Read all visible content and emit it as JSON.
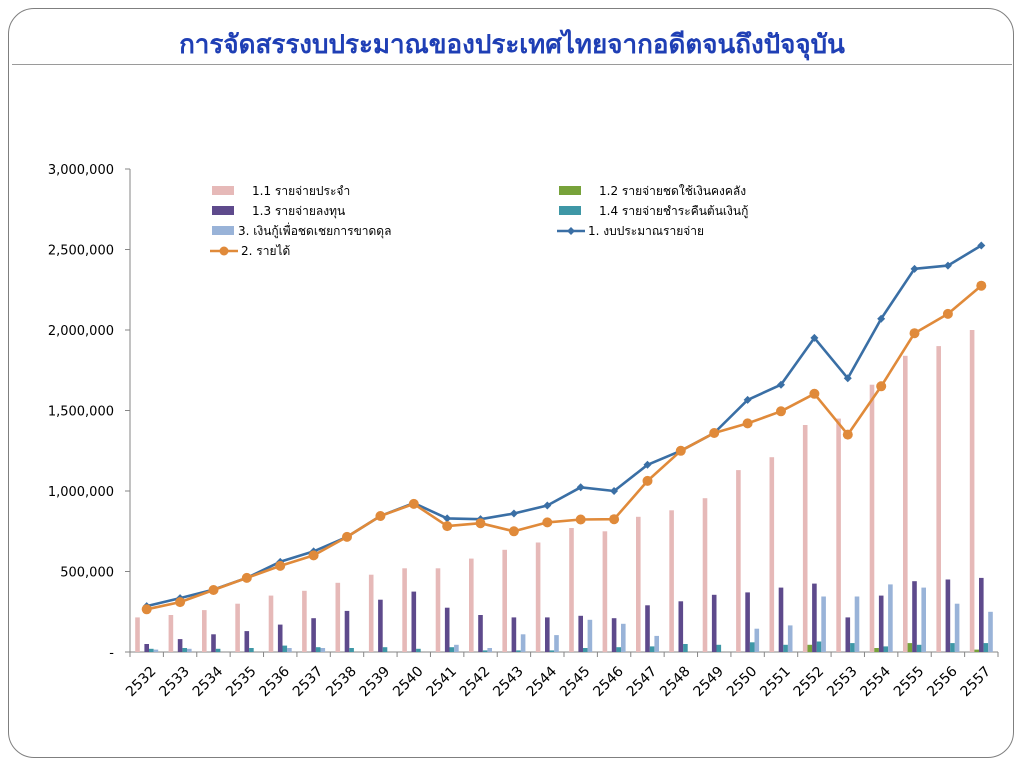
{
  "slide": {
    "title": "การจัดสรรงบประมาณของประเทศไทยจากอดีตจนถึงปัจจุบัน"
  },
  "chart_data": {
    "type": "bar+line",
    "title": "การจัดสรรงบประมาณของประเทศไทยจากอดีตจนถึงปัจจุบัน",
    "xlabel": "",
    "ylabel": "",
    "ylim": [
      0,
      3000000
    ],
    "y_ticks": [
      "-",
      "500,000",
      "1,000,000",
      "1,500,000",
      "2,000,000",
      "2,500,000",
      "3,000,000"
    ],
    "grid": false,
    "legend_position": "top-left",
    "categories": [
      "2532",
      "2533",
      "2534",
      "2535",
      "2536",
      "2537",
      "2538",
      "2539",
      "2540",
      "2541",
      "2542",
      "2543",
      "2544",
      "2545",
      "2546",
      "2547",
      "2548",
      "2549",
      "2550",
      "2551",
      "2552",
      "2553",
      "2554",
      "2555",
      "2556",
      "2557"
    ],
    "bar_series": [
      {
        "name": "1.1 รายจ่ายประจำ",
        "color": "#e6b9b8",
        "values": [
          215000,
          230000,
          260000,
          300000,
          350000,
          380000,
          430000,
          480000,
          520000,
          520000,
          580000,
          635000,
          680000,
          770000,
          750000,
          840000,
          880000,
          955000,
          1130000,
          1210000,
          1410000,
          1450000,
          1660000,
          1840000,
          1900000,
          2000000
        ]
      },
      {
        "name": "1.2 รายจ่ายชดใช้เงินคงคลัง",
        "color": "#77a23a",
        "values": [
          0,
          0,
          0,
          0,
          0,
          0,
          0,
          0,
          0,
          0,
          0,
          0,
          0,
          0,
          0,
          0,
          0,
          0,
          0,
          0,
          45000,
          0,
          25000,
          55000,
          0,
          15000
        ]
      },
      {
        "name": "1.3 รายจ่ายลงทุน",
        "color": "#5e4a8c",
        "values": [
          50000,
          80000,
          110000,
          130000,
          170000,
          210000,
          255000,
          325000,
          375000,
          275000,
          230000,
          215000,
          215000,
          225000,
          210000,
          290000,
          315000,
          355000,
          370000,
          400000,
          425000,
          215000,
          350000,
          440000,
          450000,
          460000
        ]
      },
      {
        "name": "1.4 รายจ่ายชำระคืนต้นเงินกู้",
        "color": "#3e97a6",
        "values": [
          20000,
          25000,
          20000,
          25000,
          40000,
          30000,
          25000,
          30000,
          20000,
          30000,
          10000,
          10000,
          10000,
          25000,
          30000,
          35000,
          50000,
          45000,
          60000,
          45000,
          65000,
          55000,
          35000,
          45000,
          55000,
          55000
        ]
      },
      {
        "name": "3. เงินกู้เพื่อชดเชยการขาดดุล",
        "color": "#99b3d8",
        "values": [
          15000,
          20000,
          0,
          0,
          25000,
          25000,
          0,
          0,
          0,
          45000,
          25000,
          110000,
          105000,
          200000,
          175000,
          100000,
          0,
          0,
          145000,
          165000,
          345000,
          345000,
          420000,
          400000,
          300000,
          250000
        ]
      }
    ],
    "line_series": [
      {
        "name": "1. งบประมาณรายจ่าย",
        "color": "#3a6fa5",
        "marker": "diamond",
        "values": [
          285000,
          335000,
          387500,
          460000,
          560000,
          625000,
          715000,
          845000,
          925000,
          830000,
          825000,
          860000,
          910000,
          1023000,
          1000000,
          1163000,
          1250000,
          1360000,
          1566000,
          1660000,
          1951000,
          1700000,
          2070000,
          2380000,
          2400000,
          2525000
        ]
      },
      {
        "name": "2. รายได้",
        "color": "#e08a3a",
        "marker": "circle",
        "values": [
          265000,
          310000,
          385000,
          460000,
          535000,
          600000,
          715000,
          845000,
          920000,
          782000,
          800000,
          750000,
          805000,
          823000,
          825000,
          1063000,
          1250000,
          1360000,
          1420000,
          1495000,
          1604000,
          1350000,
          1650000,
          1980000,
          2100000,
          2275000
        ]
      }
    ]
  }
}
